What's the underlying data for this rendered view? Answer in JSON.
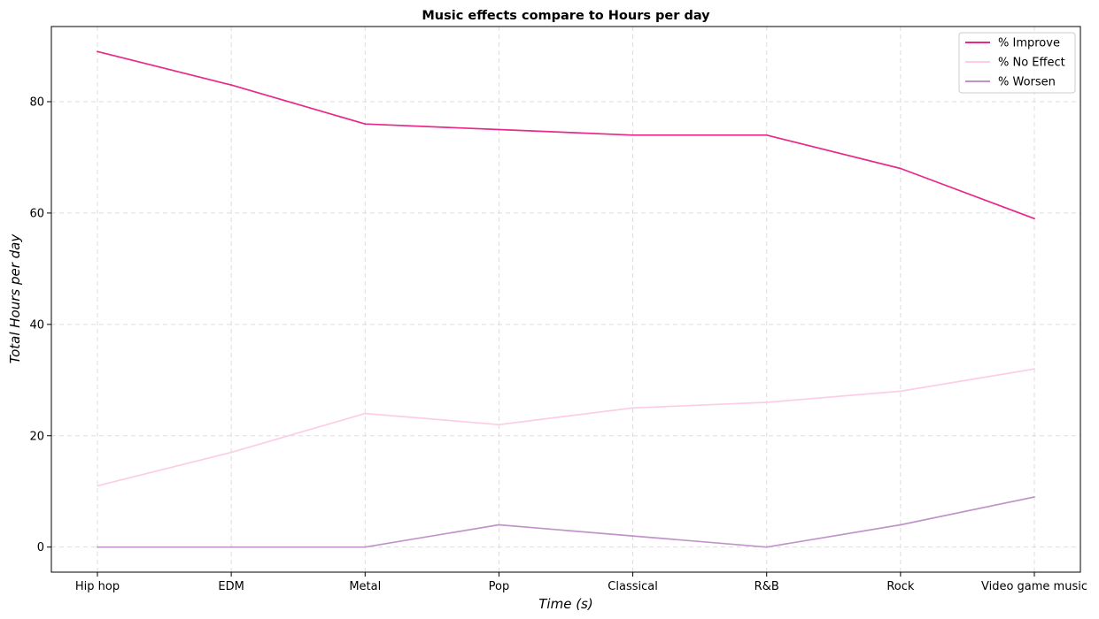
{
  "chart_data": {
    "type": "line",
    "title": "Music effects compare to Hours per day",
    "xlabel": "Time (s)",
    "ylabel": "Total Hours per day",
    "categories": [
      "Hip hop",
      "EDM",
      "Metal",
      "Pop",
      "Classical",
      "R&B",
      "Rock",
      "Video game music"
    ],
    "series": [
      {
        "name": "% Improve",
        "color": "#e7298a",
        "values": [
          89,
          83,
          76,
          75,
          74,
          74,
          68,
          59
        ]
      },
      {
        "name": "% No Effect",
        "color": "#fccde5",
        "values": [
          11,
          17,
          24,
          22,
          25,
          26,
          28,
          32
        ]
      },
      {
        "name": "% Worsen",
        "color": "#c194c9",
        "values": [
          0,
          0,
          0,
          4,
          2,
          0,
          4,
          9
        ]
      }
    ],
    "ylim": [
      -4.5,
      93.5
    ],
    "yticks": [
      0,
      20,
      40,
      60,
      80
    ],
    "grid": true,
    "legend_position": "top-right"
  }
}
